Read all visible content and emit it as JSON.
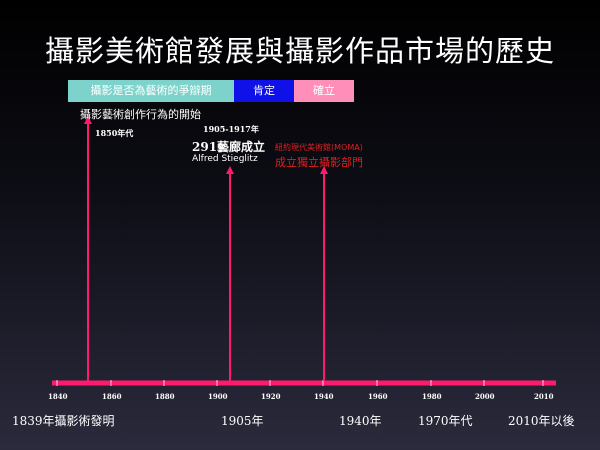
{
  "title": "攝影美術館發展與攝影作品市場的歷史",
  "legend": [
    {
      "label": "攝影是否為藝術的爭辯期",
      "color": "#7dd3cc"
    },
    {
      "label": "肯定",
      "color": "#1010e8"
    },
    {
      "label": "確立",
      "color": "#ff8fb8"
    }
  ],
  "annotations": {
    "a1_text": "攝影藝術創作行為的開始",
    "a1_year": "1850年代",
    "a2_years": "1905-1917年",
    "a2_text": "291藝廊成立",
    "a2_name": "Alfred Stieglitz",
    "a3_text1": "紐約現代美術館(MOMA)",
    "a3_text2": "成立獨立攝影部門"
  },
  "ticks": [
    "1840",
    "1860",
    "1880",
    "1900",
    "1920",
    "1940",
    "1960",
    "1980",
    "2000",
    "2010"
  ],
  "bottom_labels": [
    "1839年攝影術發明",
    "1905年",
    "1940年",
    "1970年代",
    "2010年以後"
  ],
  "colors": {
    "timeline": "#ff1a6e",
    "text_red": "#e02020"
  }
}
